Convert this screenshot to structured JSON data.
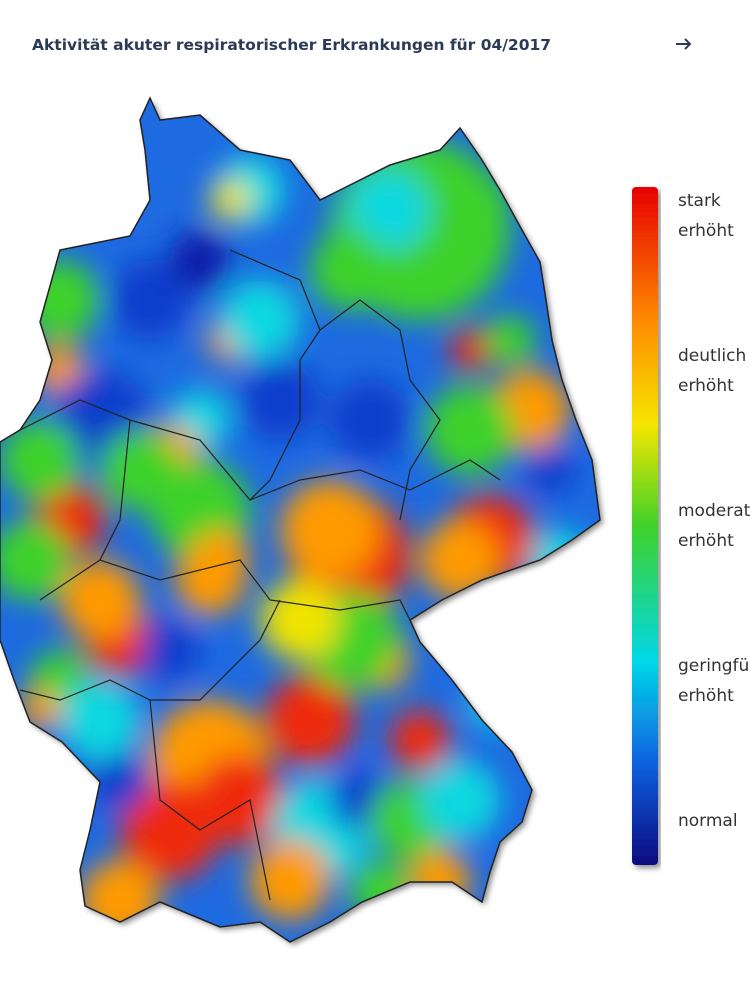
{
  "title": "Aktivität akuter respiratorischer Erkrankungen für 04/2017",
  "legend": {
    "labels": [
      [
        "stark",
        "erhöht"
      ],
      [
        "deutlich",
        "erhöht"
      ],
      [
        "moderat",
        "erhöht"
      ],
      [
        "geringfügig",
        "erhöht"
      ],
      [
        "normal"
      ]
    ]
  }
}
